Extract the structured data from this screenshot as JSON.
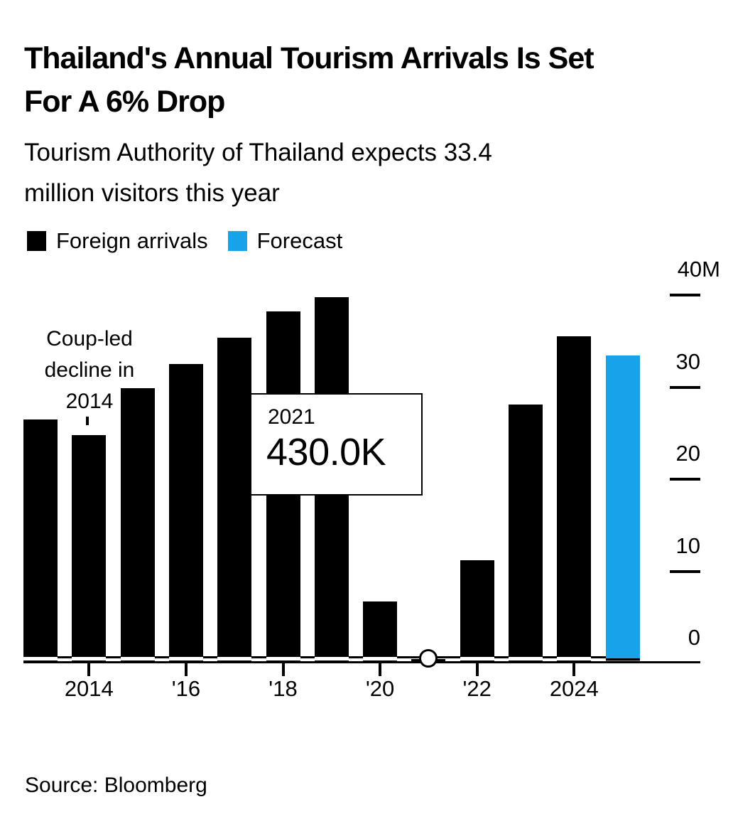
{
  "header": {
    "title_line1": "Thailand's Annual Tourism Arrivals Is Set",
    "title_line2": "For A 6% Drop",
    "subtitle_line1": "Tourism Authority of Thailand expects 33.4",
    "subtitle_line2": "million visitors this year"
  },
  "legend": [
    {
      "label": "Foreign arrivals",
      "color": "#000000"
    },
    {
      "label": "Forecast",
      "color": "#18A3E8"
    }
  ],
  "annotation": {
    "line1": "Coup-led",
    "line2": "decline in",
    "line3": "2014"
  },
  "tooltip": {
    "year": "2021",
    "value": "430.0K"
  },
  "source": "Source: Bloomberg",
  "chart_data": {
    "type": "bar",
    "title": "Thailand's Annual Tourism Arrivals Is Set For A 6% Drop",
    "subtitle": "Tourism Authority of Thailand expects 33.4 million visitors this year",
    "unit": "millions of foreign arrivals",
    "categories": [
      2013,
      2014,
      2015,
      2016,
      2017,
      2018,
      2019,
      2020,
      2021,
      2022,
      2023,
      2024,
      2025
    ],
    "values": [
      26.5,
      24.8,
      29.9,
      32.5,
      35.4,
      38.2,
      39.8,
      6.7,
      0.43,
      11.2,
      28.1,
      35.5,
      33.4
    ],
    "forecast_index": 12,
    "series": [
      {
        "name": "Foreign arrivals",
        "color": "#000000",
        "years": [
          2013,
          2014,
          2015,
          2016,
          2017,
          2018,
          2019,
          2020,
          2021,
          2022,
          2023,
          2024
        ],
        "values": [
          26.5,
          24.8,
          29.9,
          32.5,
          35.4,
          38.2,
          39.8,
          6.7,
          0.43,
          11.2,
          28.1,
          35.5
        ]
      },
      {
        "name": "Forecast",
        "color": "#18A3E8",
        "years": [
          2025
        ],
        "values": [
          33.4
        ]
      }
    ],
    "highlight": {
      "year": 2021,
      "value": 0.43,
      "value_label": "430.0K"
    },
    "annotation": {
      "text": "Coup-led decline in 2014",
      "target_year": 2014
    },
    "x_tick_years": [
      2014,
      2016,
      2018,
      2020,
      2022,
      2024
    ],
    "x_tick_labels": [
      "2014",
      "'16",
      "'18",
      "'20",
      "'22",
      "2024"
    ],
    "y_ticks": [
      0,
      10,
      20,
      30,
      40
    ],
    "y_tick_labels": [
      "0",
      "10",
      "20",
      "30",
      "40M"
    ],
    "ylim": [
      0,
      40
    ],
    "grid": false,
    "legend_position": "top-left",
    "colors": {
      "bar": "#000000",
      "forecast": "#18A3E8",
      "background": "#ffffff"
    }
  }
}
